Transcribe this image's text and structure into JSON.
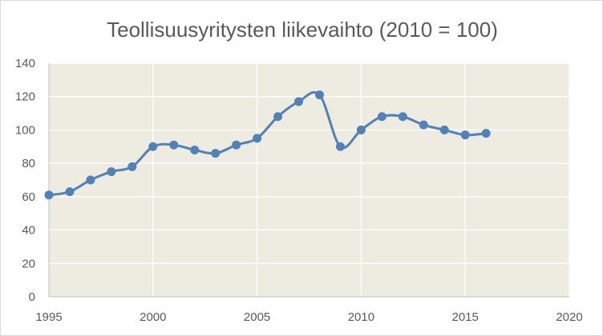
{
  "chart_data": {
    "type": "scatter",
    "title": "Teollisuusyritysten liikevaihto (2010 = 100)",
    "xlabel": "",
    "ylabel": "",
    "xlim": [
      1995,
      2020
    ],
    "ylim": [
      0,
      140
    ],
    "x_ticks": [
      "1995",
      "2000",
      "2005",
      "2010",
      "2015",
      "2020"
    ],
    "y_ticks": [
      "0",
      "20",
      "40",
      "60",
      "80",
      "100",
      "120",
      "140"
    ],
    "grid": true,
    "smoothed_line": true,
    "series": [
      {
        "color": "#4f81bd",
        "x": [
          1995,
          1996,
          1997,
          1998,
          1999,
          2000,
          2001,
          2002,
          2003,
          2004,
          2005,
          2006,
          2007,
          2008,
          2009,
          2010,
          2011,
          2012,
          2013,
          2014,
          2015,
          2016
        ],
        "y": [
          61,
          63,
          70,
          75,
          78,
          90,
          91,
          88,
          86,
          91,
          95,
          108,
          117,
          121,
          90,
          100,
          108,
          108,
          103,
          100,
          97,
          98
        ]
      }
    ],
    "colors": {
      "plot_background": "#eeece1",
      "gridline": "#ffffff",
      "axis": "#bfbfbf",
      "text": "#595959"
    }
  }
}
